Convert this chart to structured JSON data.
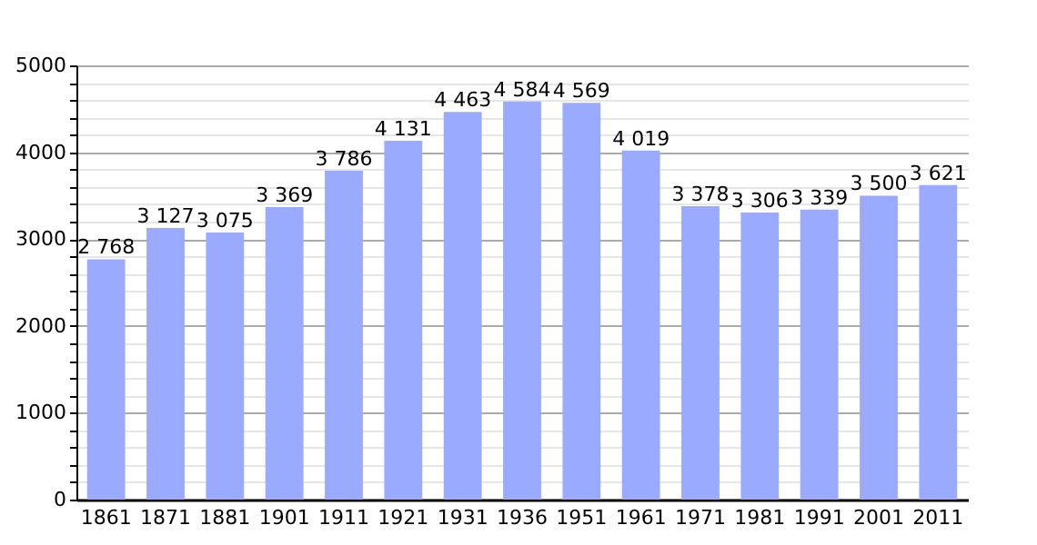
{
  "chart_data": {
    "type": "bar",
    "categories": [
      "1861",
      "1871",
      "1881",
      "1901",
      "1911",
      "1921",
      "1931",
      "1936",
      "1951",
      "1961",
      "1971",
      "1981",
      "1991",
      "2001",
      "2011"
    ],
    "values": [
      2768,
      3127,
      3075,
      3369,
      3786,
      4131,
      4463,
      4584,
      4569,
      4019,
      3378,
      3306,
      3339,
      3500,
      3621
    ],
    "value_labels": [
      "2 768",
      "3 127",
      "3 075",
      "3 369",
      "3 786",
      "4 131",
      "4 463",
      "4 584",
      "4 569",
      "4 019",
      "3 378",
      "3 306",
      "3 339",
      "3 500",
      "3 621"
    ],
    "color": "#99aaff",
    "ylim": [
      0,
      5000
    ],
    "yticks": [
      0,
      {
        "value": 200,
        "label": null
      },
      {
        "value": 400,
        "label": null
      },
      {
        "value": 600,
        "label": null
      },
      {
        "value": 800,
        "label": null
      },
      1000,
      {
        "value": 1200,
        "label": null
      },
      {
        "value": 1400,
        "label": null
      },
      {
        "value": 1600,
        "label": null
      },
      {
        "value": 1800,
        "label": null
      },
      2000,
      {
        "value": 2200,
        "label": null
      },
      {
        "value": 2400,
        "label": null
      },
      {
        "value": 2600,
        "label": null
      },
      {
        "value": 2800,
        "label": null
      },
      3000,
      {
        "value": 3200,
        "label": null
      },
      {
        "value": 3400,
        "label": null
      },
      {
        "value": 3600,
        "label": null
      },
      {
        "value": 3800,
        "label": null
      },
      4000,
      {
        "value": 4200,
        "label": null
      },
      {
        "value": 4400,
        "label": null
      },
      {
        "value": 4600,
        "label": null
      },
      {
        "value": 4800,
        "label": null
      },
      5000
    ],
    "grid": true
  }
}
